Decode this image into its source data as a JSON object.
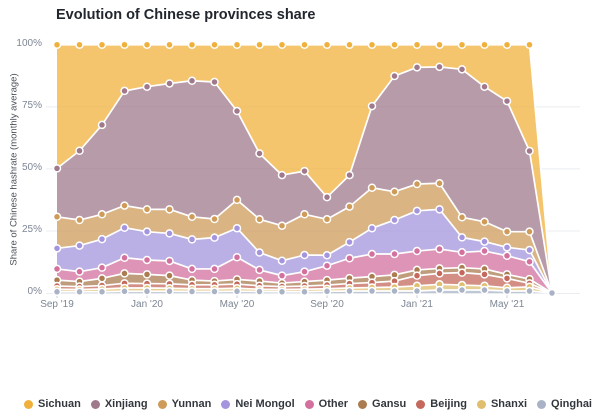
{
  "title": "Evolution of Chinese provinces share",
  "y_axis": {
    "label": "Share of Chinese hashrate (monthly average)"
  },
  "chart_data": {
    "type": "area",
    "stacking": "percent",
    "title": "Evolution of Chinese provinces share",
    "xlabel": "",
    "ylabel": "Share of Chinese hashrate (monthly average)",
    "ylim": [
      0,
      100
    ],
    "grid": "horizontal-light",
    "legend_position": "bottom",
    "x": [
      "Sep '19",
      "Oct '19",
      "Nov '19",
      "Dec '19",
      "Jan '20",
      "Feb '20",
      "Mar '20",
      "Apr '20",
      "May '20",
      "Jun '20",
      "Jul '20",
      "Aug '20",
      "Sep '20",
      "Oct '20",
      "Nov '20",
      "Dec '20",
      "Jan '21",
      "Feb '21",
      "Mar '21",
      "Apr '21",
      "May '21",
      "Jun '21",
      "Jul '21"
    ],
    "x_axis_tick_labels": [
      "Sep '19",
      "Jan '20",
      "May '20",
      "Sep '20",
      "Jan '21",
      "May '21"
    ],
    "x_axis_tick_indices": [
      0,
      4,
      8,
      12,
      16,
      20
    ],
    "y_axis_tick_labels": [
      "0%",
      "25%",
      "50%",
      "75%",
      "100%"
    ],
    "stack_order_bottom_to_top": [
      "Qinghai",
      "Shanxi",
      "Beijing",
      "Gansu",
      "Other",
      "Nei Mongol",
      "Yunnan",
      "Xinjiang",
      "Sichuan"
    ],
    "series": [
      {
        "name": "Sichuan",
        "color": "#F0B13C",
        "values": [
          49.8,
          42.7,
          32.3,
          18.6,
          16.9,
          15.6,
          14.5,
          15.0,
          26.7,
          43.8,
          52.5,
          50.9,
          61.4,
          52.5,
          24.7,
          12.6,
          9.1,
          8.9,
          9.9,
          16.9,
          22.7,
          42.8,
          0
        ]
      },
      {
        "name": "Xinjiang",
        "color": "#A07A8C",
        "values": [
          19.5,
          27.9,
          36.0,
          46.2,
          49.4,
          50.7,
          54.8,
          55.2,
          35.8,
          26.5,
          20.4,
          17.4,
          8.9,
          12.7,
          32.9,
          46.6,
          47.0,
          46.9,
          59.6,
          54.4,
          52.6,
          32.5,
          0
        ]
      },
      {
        "name": "Yunnan",
        "color": "#CE9B59",
        "values": [
          12.7,
          10.3,
          10.0,
          8.9,
          9.0,
          9.7,
          9.1,
          7.5,
          11.4,
          13.4,
          14.1,
          16.4,
          14.5,
          14.3,
          16.3,
          11.4,
          10.8,
          10.5,
          8.1,
          8.0,
          6.3,
          7.4,
          0
        ]
      },
      {
        "name": "Nei Mongol",
        "color": "#A495DE",
        "values": [
          8.3,
          10.5,
          11.5,
          12.1,
          11.4,
          11.1,
          11.9,
          12.6,
          11.7,
          7.0,
          6.0,
          6.7,
          4.2,
          6.5,
          10.4,
          13.7,
          16.2,
          16.0,
          6.0,
          3.8,
          3.4,
          4.7,
          0
        ]
      },
      {
        "name": "Other",
        "color": "#D3709E",
        "values": [
          4.5,
          4.0,
          4.3,
          6.3,
          5.8,
          5.9,
          4.5,
          4.9,
          8.9,
          4.5,
          3.0,
          4.0,
          5.8,
          8.0,
          9.1,
          8.4,
          7.6,
          7.8,
          6.2,
          7.2,
          7.5,
          7.0,
          0
        ]
      },
      {
        "name": "Gansu",
        "color": "#AA7C50",
        "values": [
          2.4,
          2.0,
          2.9,
          4.0,
          3.7,
          3.3,
          1.9,
          1.5,
          1.9,
          1.9,
          1.4,
          1.8,
          2.0,
          2.2,
          2.4,
          2.5,
          2.3,
          2.0,
          2.0,
          2.2,
          1.6,
          1.7,
          0
        ]
      },
      {
        "name": "Beijing",
        "color": "#C4695C",
        "values": [
          1.3,
          1.2,
          1.4,
          1.9,
          1.8,
          1.8,
          1.6,
          1.6,
          1.7,
          1.4,
          1.2,
          1.3,
          1.5,
          1.8,
          2.0,
          2.4,
          4.1,
          4.4,
          5.0,
          4.6,
          3.8,
          1.4,
          0
        ]
      },
      {
        "name": "Shanxi",
        "color": "#DFBE6E",
        "values": [
          1.0,
          0.9,
          1.1,
          1.3,
          1.3,
          1.2,
          1.1,
          1.1,
          1.2,
          0.9,
          0.9,
          1.0,
          1.0,
          1.2,
          1.4,
          1.6,
          2.1,
          2.3,
          2.0,
          1.7,
          1.3,
          1.7,
          0
        ]
      },
      {
        "name": "Qinghai",
        "color": "#A9B3C5",
        "values": [
          0.5,
          0.5,
          0.5,
          0.7,
          0.7,
          0.7,
          0.6,
          0.6,
          0.7,
          0.6,
          0.5,
          0.5,
          0.7,
          0.8,
          0.8,
          0.8,
          0.8,
          1.2,
          1.2,
          1.2,
          0.8,
          0.8,
          0
        ]
      }
    ],
    "axis_colors": {
      "tick_label": "#7d8694",
      "grid_line": "#e9ecf1",
      "tick_mark": "#c9d0db"
    }
  }
}
